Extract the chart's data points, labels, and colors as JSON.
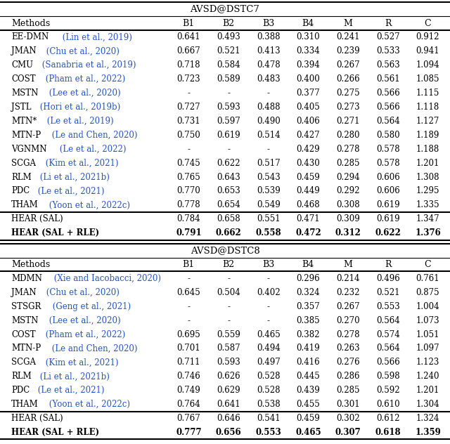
{
  "title1": "AVSD@DSTC7",
  "title2": "AVSD@DSTC8",
  "columns": [
    "Methods",
    "B1",
    "B2",
    "B3",
    "B4",
    "M",
    "R",
    "C"
  ],
  "table1_rows": [
    {
      "method": "EE-DMN",
      "cite": " (Lin et al., 2019)",
      "vals": [
        "0.641",
        "0.493",
        "0.388",
        "0.310",
        "0.241",
        "0.527",
        "0.912"
      ],
      "bold": false,
      "hear": false
    },
    {
      "method": "JMAN",
      "cite": " (Chu et al., 2020)",
      "vals": [
        "0.667",
        "0.521",
        "0.413",
        "0.334",
        "0.239",
        "0.533",
        "0.941"
      ],
      "bold": false,
      "hear": false
    },
    {
      "method": "CMU",
      "cite": " (Sanabria et al., 2019)",
      "vals": [
        "0.718",
        "0.584",
        "0.478",
        "0.394",
        "0.267",
        "0.563",
        "1.094"
      ],
      "bold": false,
      "hear": false
    },
    {
      "method": "COST",
      "cite": " (Pham et al., 2022)",
      "vals": [
        "0.723",
        "0.589",
        "0.483",
        "0.400",
        "0.266",
        "0.561",
        "1.085"
      ],
      "bold": false,
      "hear": false
    },
    {
      "method": "MSTN",
      "cite": " (Lee et al., 2020)",
      "vals": [
        "-",
        "-",
        "-",
        "0.377",
        "0.275",
        "0.566",
        "1.115"
      ],
      "bold": false,
      "hear": false
    },
    {
      "method": "JSTL",
      "cite": " (Hori et al., 2019b)",
      "vals": [
        "0.727",
        "0.593",
        "0.488",
        "0.405",
        "0.273",
        "0.566",
        "1.118"
      ],
      "bold": false,
      "hear": false
    },
    {
      "method": "MTN*",
      "cite": " (Le et al., 2019)",
      "vals": [
        "0.731",
        "0.597",
        "0.490",
        "0.406",
        "0.271",
        "0.564",
        "1.127"
      ],
      "bold": false,
      "hear": false
    },
    {
      "method": "MTN-P",
      "cite": " (Le and Chen, 2020)",
      "vals": [
        "0.750",
        "0.619",
        "0.514",
        "0.427",
        "0.280",
        "0.580",
        "1.189"
      ],
      "bold": false,
      "hear": false
    },
    {
      "method": "VGNMN",
      "cite": " (Le et al., 2022)",
      "vals": [
        "-",
        "-",
        "-",
        "0.429",
        "0.278",
        "0.578",
        "1.188"
      ],
      "bold": false,
      "hear": false
    },
    {
      "method": "SCGA",
      "cite": " (Kim et al., 2021)",
      "vals": [
        "0.745",
        "0.622",
        "0.517",
        "0.430",
        "0.285",
        "0.578",
        "1.201"
      ],
      "bold": false,
      "hear": false
    },
    {
      "method": "RLM",
      "cite": " (Li et al., 2021b)",
      "vals": [
        "0.765",
        "0.643",
        "0.543",
        "0.459",
        "0.294",
        "0.606",
        "1.308"
      ],
      "bold": false,
      "hear": false
    },
    {
      "method": "PDC",
      "cite": " (Le et al., 2021)",
      "vals": [
        "0.770",
        "0.653",
        "0.539",
        "0.449",
        "0.292",
        "0.606",
        "1.295"
      ],
      "bold": false,
      "hear": false
    },
    {
      "method": "THAM",
      "cite": " (Yoon et al., 2022c)",
      "vals": [
        "0.778",
        "0.654",
        "0.549",
        "0.468",
        "0.308",
        "0.619",
        "1.335"
      ],
      "bold": false,
      "hear": false
    },
    {
      "method": "HEAR (SAL)",
      "cite": "",
      "vals": [
        "0.784",
        "0.658",
        "0.551",
        "0.471",
        "0.309",
        "0.619",
        "1.347"
      ],
      "bold": false,
      "hear": true
    },
    {
      "method": "HEAR (SAL + RLE)",
      "cite": "",
      "vals": [
        "0.791",
        "0.662",
        "0.558",
        "0.472",
        "0.312",
        "0.622",
        "1.376"
      ],
      "bold": true,
      "hear": true
    }
  ],
  "table2_rows": [
    {
      "method": "MDMN",
      "cite": " (Xie and Iacobacci, 2020)",
      "vals": [
        "-",
        "-",
        "-",
        "0.296",
        "0.214",
        "0.496",
        "0.761"
      ],
      "bold": false,
      "hear": false
    },
    {
      "method": "JMAN",
      "cite": " (Chu et al., 2020)",
      "vals": [
        "0.645",
        "0.504",
        "0.402",
        "0.324",
        "0.232",
        "0.521",
        "0.875"
      ],
      "bold": false,
      "hear": false
    },
    {
      "method": "STSGR",
      "cite": " (Geng et al., 2021)",
      "vals": [
        "-",
        "-",
        "-",
        "0.357",
        "0.267",
        "0.553",
        "1.004"
      ],
      "bold": false,
      "hear": false
    },
    {
      "method": "MSTN",
      "cite": " (Lee et al., 2020)",
      "vals": [
        "-",
        "-",
        "-",
        "0.385",
        "0.270",
        "0.564",
        "1.073"
      ],
      "bold": false,
      "hear": false
    },
    {
      "method": "COST",
      "cite": " (Pham et al., 2022)",
      "vals": [
        "0.695",
        "0.559",
        "0.465",
        "0.382",
        "0.278",
        "0.574",
        "1.051"
      ],
      "bold": false,
      "hear": false
    },
    {
      "method": "MTN-P",
      "cite": " (Le and Chen, 2020)",
      "vals": [
        "0.701",
        "0.587",
        "0.494",
        "0.419",
        "0.263",
        "0.564",
        "1.097"
      ],
      "bold": false,
      "hear": false
    },
    {
      "method": "SCGA",
      "cite": " (Kim et al., 2021)",
      "vals": [
        "0.711",
        "0.593",
        "0.497",
        "0.416",
        "0.276",
        "0.566",
        "1.123"
      ],
      "bold": false,
      "hear": false
    },
    {
      "method": "RLM",
      "cite": " (Li et al., 2021b)",
      "vals": [
        "0.746",
        "0.626",
        "0.528",
        "0.445",
        "0.286",
        "0.598",
        "1.240"
      ],
      "bold": false,
      "hear": false
    },
    {
      "method": "PDC",
      "cite": " (Le et al., 2021)",
      "vals": [
        "0.749",
        "0.629",
        "0.528",
        "0.439",
        "0.285",
        "0.592",
        "1.201"
      ],
      "bold": false,
      "hear": false
    },
    {
      "method": "THAM",
      "cite": " (Yoon et al., 2022c)",
      "vals": [
        "0.764",
        "0.641",
        "0.538",
        "0.455",
        "0.301",
        "0.610",
        "1.304"
      ],
      "bold": false,
      "hear": false
    },
    {
      "method": "HEAR (SAL)",
      "cite": "",
      "vals": [
        "0.767",
        "0.646",
        "0.541",
        "0.459",
        "0.302",
        "0.612",
        "1.324"
      ],
      "bold": false,
      "hear": true
    },
    {
      "method": "HEAR (SAL + RLE)",
      "cite": "",
      "vals": [
        "0.777",
        "0.656",
        "0.553",
        "0.465",
        "0.307",
        "0.618",
        "1.359"
      ],
      "bold": true,
      "hear": true
    }
  ],
  "cite_color": "#2255CC",
  "font_size": 8.5,
  "header_font_size": 9.0,
  "title_font_size": 9.5,
  "val_col_labels": [
    "B1",
    "B2",
    "B3",
    "B4",
    "M",
    "R",
    "C"
  ]
}
